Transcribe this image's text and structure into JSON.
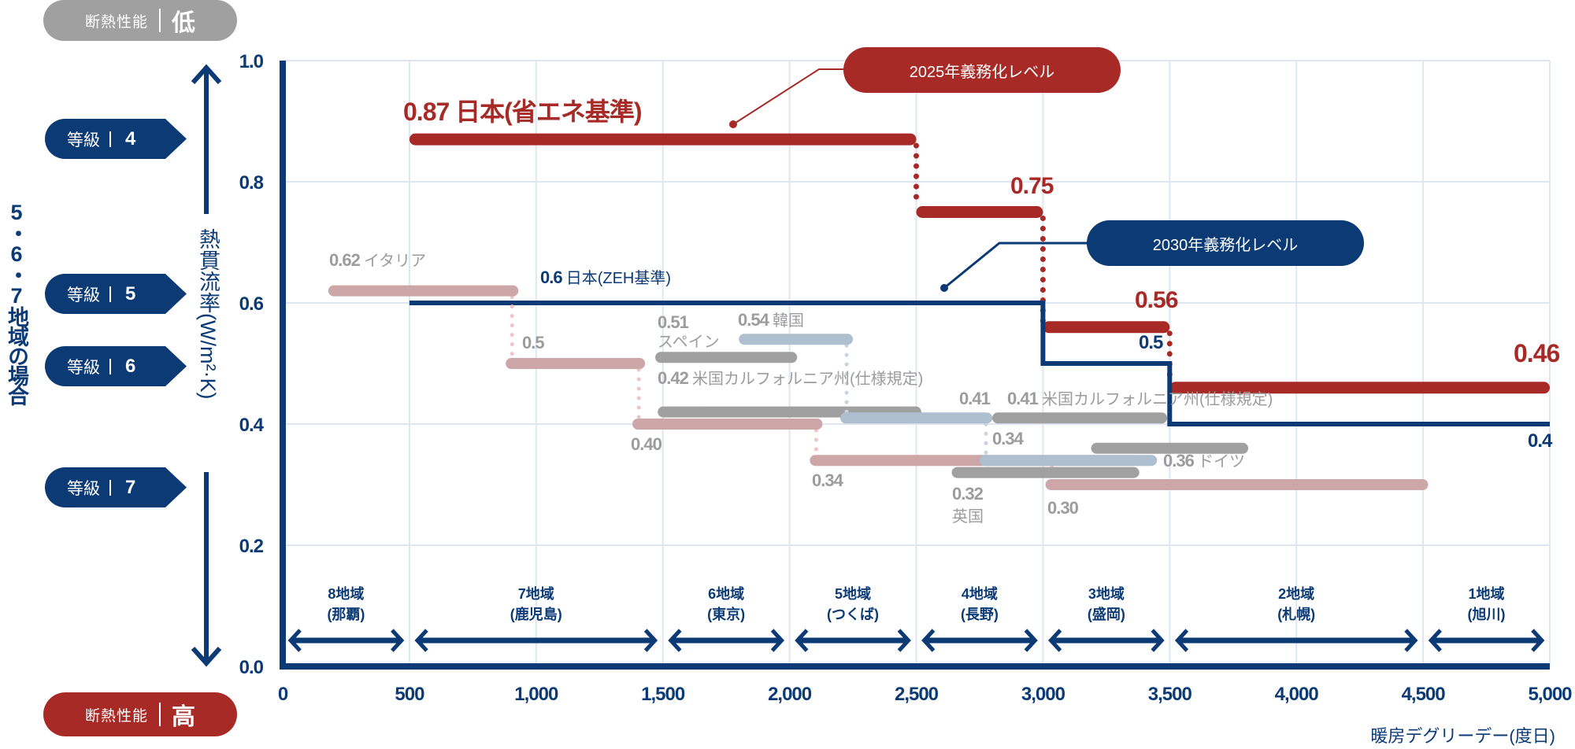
{
  "left_panel": {
    "top_pill": {
      "label": "断熱性能",
      "value": "低",
      "color": "#a0a0a0"
    },
    "bottom_pill": {
      "label": "断熱性能",
      "value": "高",
      "color": "#a72a26"
    },
    "grades": [
      {
        "label": "等級",
        "value": "4"
      },
      {
        "label": "等級",
        "value": "5"
      },
      {
        "label": "等級",
        "value": "6"
      },
      {
        "label": "等級",
        "value": "7"
      }
    ],
    "region_note": "5・6・7地域の場合"
  },
  "callouts": {
    "level_2025": "2025年義務化レベル",
    "level_2030": "2030年義務化レベル"
  },
  "chart_data": {
    "type": "line",
    "xlabel": "暖房デグリーデー(度日)",
    "ylabel": "熱貫流率(W/m²·K)",
    "xlim": [
      0,
      5000
    ],
    "ylim": [
      0,
      1.0
    ],
    "xticks": [
      0,
      500,
      1000,
      1500,
      2000,
      2500,
      3000,
      3500,
      4000,
      4500,
      5000
    ],
    "xtick_labels": [
      "0",
      "500",
      "1,000",
      "1,500",
      "2,000",
      "2,500",
      "3,000",
      "3,500",
      "4,000",
      "4,500",
      "5,000"
    ],
    "yticks": [
      0,
      0.2,
      0.4,
      0.6,
      0.8,
      1.0
    ],
    "ytick_labels": [
      "0.0",
      "0.2",
      "0.4",
      "0.6",
      "0.8",
      "1.0"
    ],
    "grid": true,
    "colors": {
      "japan_standard": "#a72a26",
      "japan_zeh": "#0b3a75",
      "italy": "#cda6a7",
      "gray_countries": "#a0a0a0",
      "korea": "#aebfcf",
      "grid": "#dfe6f1"
    },
    "series": [
      {
        "name": "日本(省エネ基準)",
        "color": "#a72a26",
        "style": "thick",
        "segments": [
          [
            500,
            2500,
            0.87
          ],
          [
            2500,
            3000,
            0.75
          ],
          [
            3000,
            3500,
            0.56
          ],
          [
            3500,
            5000,
            0.46
          ]
        ]
      },
      {
        "name": "日本(ZEH基準)",
        "color": "#0b3a75",
        "style": "step",
        "segments": [
          [
            500,
            3000,
            0.6
          ],
          [
            3000,
            3500,
            0.5
          ],
          [
            3500,
            5000,
            0.4
          ]
        ]
      },
      {
        "name": "イタリア",
        "color": "#cda6a7",
        "style": "bar",
        "segments": [
          [
            180,
            930,
            0.62
          ],
          [
            880,
            1430,
            0.5
          ],
          [
            1380,
            2130,
            0.4
          ],
          [
            2080,
            3380,
            0.34
          ],
          [
            3010,
            4520,
            0.3
          ]
        ]
      },
      {
        "name": "スペイン",
        "color": "#a0a0a0",
        "style": "bar",
        "segments": [
          [
            1470,
            2030,
            0.51
          ]
        ]
      },
      {
        "name": "米国カルフォルニア州(仕様規定)",
        "color": "#a0a0a0",
        "style": "bar",
        "segments": [
          [
            1480,
            2520,
            0.42
          ],
          [
            2800,
            3490,
            0.41
          ]
        ]
      },
      {
        "name": "英国",
        "color": "#a0a0a0",
        "style": "bar",
        "segments": [
          [
            2640,
            3380,
            0.32
          ]
        ]
      },
      {
        "name": "ドイツ",
        "color": "#a0a0a0",
        "style": "bar",
        "segments": [
          [
            3190,
            3810,
            0.36
          ]
        ]
      },
      {
        "name": "韓国",
        "color": "#aebfcf",
        "style": "bar",
        "segments": [
          [
            1800,
            2250,
            0.54
          ],
          [
            2200,
            2800,
            0.41
          ],
          [
            2750,
            3450,
            0.34
          ]
        ]
      }
    ],
    "labels": {
      "jp_087": "0.87 日本(省エネ基準)",
      "jp_075": "0.75",
      "jp_056": "0.56",
      "jp_046": "0.46",
      "zeh_06_val": "0.6",
      "zeh_06_name": "日本(ZEH基準)",
      "zeh_05": "0.5",
      "zeh_04": "0.4",
      "italy_062_val": "0.62",
      "italy_062_name": "イタリア",
      "italy_05": "0.5",
      "italy_040": "0.40",
      "italy_034": "0.34",
      "italy_030": "0.30",
      "spain_val": "0.51",
      "spain_name": "スペイン",
      "korea_054_val": "0.54",
      "korea_054_name": "韓国",
      "korea_041": "0.41",
      "korea_034": "0.34",
      "ca_042_val": "0.42",
      "ca_042_name": "米国カルフォルニア州(仕様規定)",
      "ca_041_val": "0.41",
      "ca_041_name": "米国カルフォルニア州(仕様規定)",
      "uk_val": "0.32",
      "uk_name": "英国",
      "de_val": "0.36",
      "de_name": "ドイツ"
    },
    "zones": [
      {
        "name": "8地域",
        "city": "(那覇)",
        "range": [
          0,
          500
        ]
      },
      {
        "name": "7地域",
        "city": "(鹿児島)",
        "range": [
          500,
          1500
        ]
      },
      {
        "name": "6地域",
        "city": "(東京)",
        "range": [
          1500,
          2000
        ]
      },
      {
        "name": "5地域",
        "city": "(つくば)",
        "range": [
          2000,
          2500
        ]
      },
      {
        "name": "4地域",
        "city": "(長野)",
        "range": [
          2500,
          3000
        ]
      },
      {
        "name": "3地域",
        "city": "(盛岡)",
        "range": [
          3000,
          3500
        ]
      },
      {
        "name": "2地域",
        "city": "(札幌)",
        "range": [
          3500,
          4500
        ]
      },
      {
        "name": "1地域",
        "city": "(旭川)",
        "range": [
          4500,
          5000
        ]
      }
    ]
  }
}
